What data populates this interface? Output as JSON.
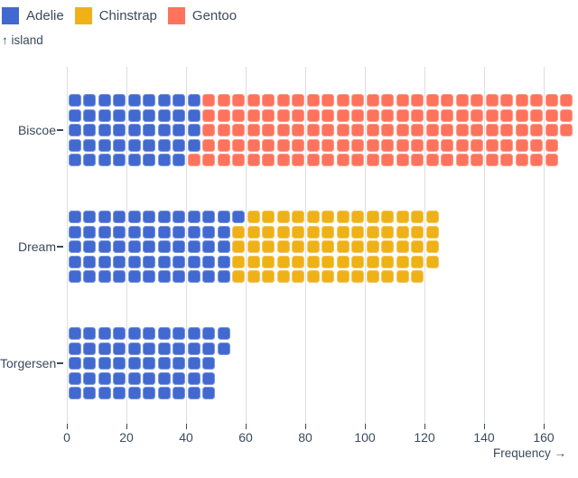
{
  "legend": {
    "items": [
      {
        "label": "Adelie",
        "color": "#4269d0"
      },
      {
        "label": "Chinstrap",
        "color": "#efb118"
      },
      {
        "label": "Gentoo",
        "color": "#ff725c"
      }
    ]
  },
  "chart_data": {
    "type": "waffle-bar",
    "orientation": "horizontal",
    "ylabel": "↑ island",
    "xlabel": "Frequency →",
    "categories": [
      "Biscoe",
      "Dream",
      "Torgersen"
    ],
    "series": [
      {
        "name": "Adelie",
        "color": "#4269d0",
        "values": [
          44,
          56,
          52
        ]
      },
      {
        "name": "Chinstrap",
        "color": "#efb118",
        "values": [
          0,
          68,
          0
        ]
      },
      {
        "name": "Gentoo",
        "color": "#ff725c",
        "values": [
          124,
          0,
          0
        ]
      }
    ],
    "category_totals": [
      168,
      124,
      52
    ],
    "cell_unit": 1,
    "rows_per_category": 5,
    "units_per_column": 5,
    "x_ticks": [
      0,
      20,
      40,
      60,
      80,
      100,
      120,
      140,
      160
    ],
    "xlim": [
      0,
      170
    ],
    "grid": true,
    "legend_position": "top-left"
  },
  "colors": {
    "background": "#ffffff",
    "text": "#3b4a5c",
    "gridline": "#dcdee2"
  }
}
